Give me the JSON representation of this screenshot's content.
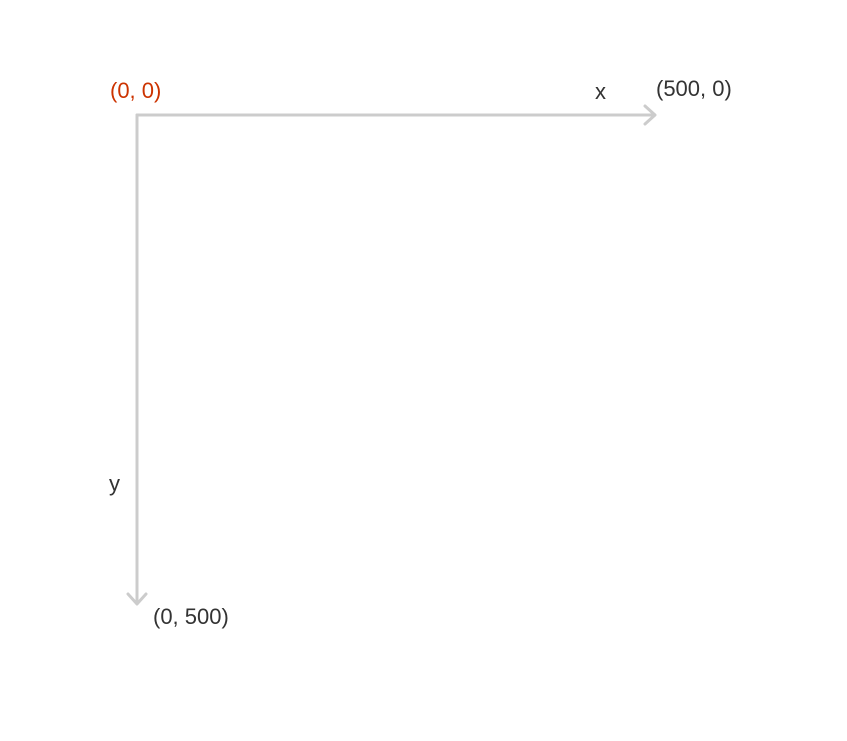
{
  "labels": {
    "origin": "(0, 0)",
    "x_axis": "x",
    "y_axis": "y",
    "x_end": "(500, 0)",
    "y_end": "(0, 500)"
  },
  "colors": {
    "axis": "#cccccc",
    "origin_text": "#cc3300",
    "text": "#333333",
    "background": "#ffffff"
  }
}
